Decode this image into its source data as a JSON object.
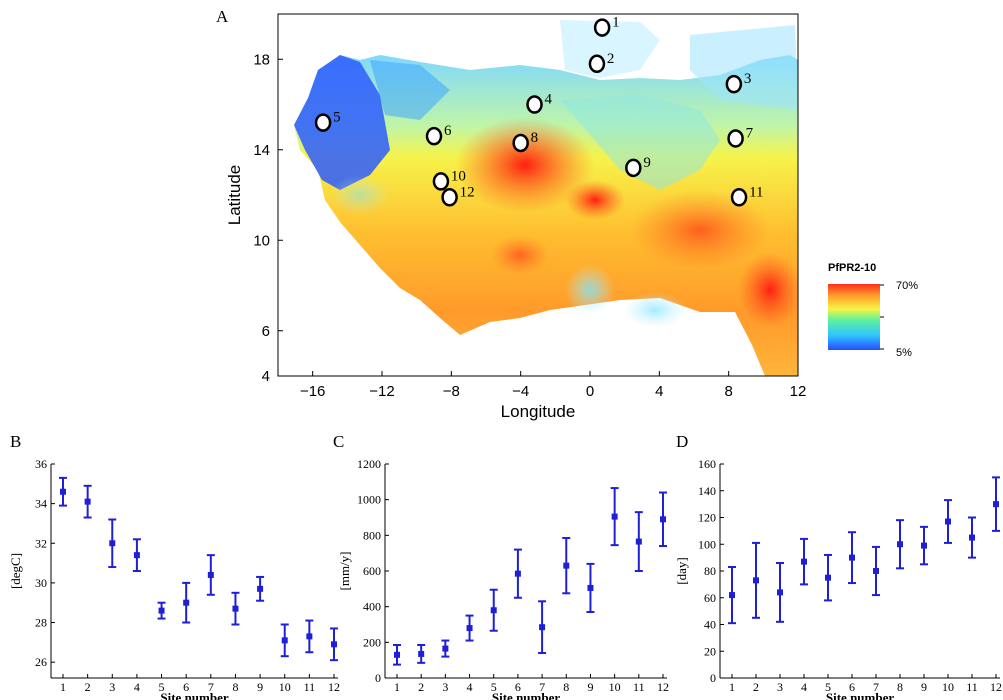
{
  "panels": {
    "A": {
      "letter": "A"
    },
    "B": {
      "letter": "B"
    },
    "C": {
      "letter": "C"
    },
    "D": {
      "letter": "D"
    }
  },
  "chart_data": [
    {
      "panel": "A",
      "type": "heatmap",
      "xlabel": "Longitude",
      "ylabel": "Latitude",
      "xlim": [
        -18,
        12
      ],
      "ylim": [
        4,
        20
      ],
      "xticks": [
        -16,
        -12,
        -8,
        -4,
        0,
        4,
        8,
        12
      ],
      "yticks": [
        4,
        6,
        10,
        14,
        18
      ],
      "colorbar": {
        "title": "PfPR2-10",
        "max_label": "70%",
        "min_label": "5%",
        "colors": [
          "#2b4bff",
          "#2ec4ff",
          "#5cf0a0",
          "#f5f545",
          "#ff9f2a",
          "#ff2f1e"
        ]
      },
      "sites": [
        {
          "n": "1",
          "lon": 0.7,
          "lat": 19.4
        },
        {
          "n": "2",
          "lon": 0.4,
          "lat": 17.8
        },
        {
          "n": "3",
          "lon": 8.3,
          "lat": 16.9
        },
        {
          "n": "4",
          "lon": -3.2,
          "lat": 16.0
        },
        {
          "n": "5",
          "lon": -15.4,
          "lat": 15.2
        },
        {
          "n": "6",
          "lon": -9.0,
          "lat": 14.6
        },
        {
          "n": "7",
          "lon": 8.4,
          "lat": 14.5
        },
        {
          "n": "8",
          "lon": -4.0,
          "lat": 14.3
        },
        {
          "n": "9",
          "lon": 2.5,
          "lat": 13.2
        },
        {
          "n": "10",
          "lon": -8.6,
          "lat": 12.6
        },
        {
          "n": "11",
          "lon": 8.6,
          "lat": 11.9
        },
        {
          "n": "12",
          "lon": -8.1,
          "lat": 11.9
        }
      ]
    },
    {
      "panel": "B",
      "type": "scatter",
      "xlabel": "Site number",
      "ylabel": "[degC]",
      "categories": [
        "1",
        "2",
        "3",
        "4",
        "5",
        "6",
        "7",
        "8",
        "9",
        "10",
        "11",
        "12"
      ],
      "values": [
        34.6,
        34.1,
        32.0,
        31.4,
        28.6,
        29.0,
        30.4,
        28.7,
        29.7,
        27.1,
        27.3,
        26.9
      ],
      "errors": [
        0.7,
        0.8,
        1.2,
        0.8,
        0.4,
        1.0,
        1.0,
        0.8,
        0.6,
        0.8,
        0.8,
        0.8
      ],
      "ylim": [
        25.2,
        36
      ],
      "yticks": [
        26,
        28,
        30,
        32,
        34,
        36
      ]
    },
    {
      "panel": "C",
      "type": "scatter",
      "xlabel": "Site number",
      "ylabel": "[mm/y]",
      "categories": [
        "1",
        "2",
        "3",
        "4",
        "5",
        "6",
        "7",
        "8",
        "9",
        "10",
        "11",
        "12"
      ],
      "values": [
        130,
        135,
        165,
        280,
        380,
        585,
        285,
        630,
        505,
        905,
        765,
        890
      ],
      "errors": [
        55,
        50,
        45,
        70,
        115,
        135,
        145,
        155,
        135,
        160,
        165,
        150
      ],
      "ylim": [
        0,
        1200
      ],
      "yticks": [
        0,
        200,
        400,
        600,
        800,
        1000,
        1200
      ]
    },
    {
      "panel": "D",
      "type": "scatter",
      "xlabel": "Site number",
      "ylabel": "[day]",
      "categories": [
        "1",
        "2",
        "3",
        "4",
        "5",
        "6",
        "7",
        "8",
        "9",
        "10",
        "11",
        "12"
      ],
      "values": [
        62,
        73,
        64,
        87,
        75,
        90,
        80,
        100,
        99,
        117,
        105,
        130
      ],
      "errors": [
        21,
        28,
        22,
        17,
        17,
        19,
        18,
        18,
        14,
        16,
        15,
        20
      ],
      "ylim": [
        0,
        160
      ],
      "yticks": [
        0,
        20,
        40,
        60,
        80,
        100,
        120,
        140,
        160
      ]
    }
  ]
}
